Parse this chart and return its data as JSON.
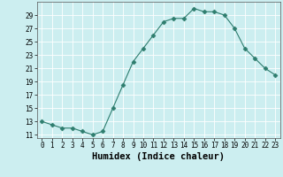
{
  "x": [
    0,
    1,
    2,
    3,
    4,
    5,
    6,
    7,
    8,
    9,
    10,
    11,
    12,
    13,
    14,
    15,
    16,
    17,
    18,
    19,
    20,
    21,
    22,
    23
  ],
  "y": [
    13,
    12.5,
    12,
    12,
    11.5,
    11,
    11.5,
    15,
    18.5,
    22,
    24,
    26,
    28,
    28.5,
    28.5,
    30,
    29.5,
    29.5,
    29,
    27,
    24,
    22.5,
    21,
    20
  ],
  "line_color": "#2e7d6e",
  "marker": "D",
  "marker_size": 2.5,
  "bg_color": "#cceef0",
  "grid_color": "#ffffff",
  "xlabel": "Humidex (Indice chaleur)",
  "ylabel": "",
  "xlim": [
    -0.5,
    23.5
  ],
  "ylim": [
    10.5,
    31
  ],
  "yticks": [
    11,
    13,
    15,
    17,
    19,
    21,
    23,
    25,
    27,
    29
  ],
  "xticks": [
    0,
    1,
    2,
    3,
    4,
    5,
    6,
    7,
    8,
    9,
    10,
    11,
    12,
    13,
    14,
    15,
    16,
    17,
    18,
    19,
    20,
    21,
    22,
    23
  ],
  "tick_fontsize": 5.5,
  "xlabel_fontsize": 7.5
}
